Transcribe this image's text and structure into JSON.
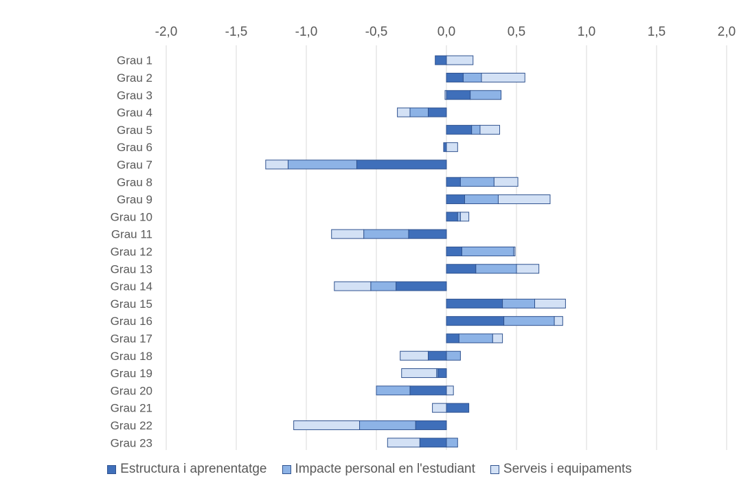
{
  "chart_data": {
    "type": "bar",
    "orientation": "horizontal",
    "stacked": true,
    "categories": [
      "Grau 1",
      "Grau 2",
      "Grau 3",
      "Grau 4",
      "Grau 5",
      "Grau 6",
      "Grau 7",
      "Grau 8",
      "Grau 9",
      "Grau 10",
      "Grau 11",
      "Grau 12",
      "Grau 13",
      "Grau 14",
      "Grau 15",
      "Grau 16",
      "Grau 17",
      "Grau 18",
      "Grau 19",
      "Grau 20",
      "Grau 21",
      "Grau 22",
      "Grau 23"
    ],
    "series": [
      {
        "name": "Estructura i aprenentatge",
        "color": "#3f6fba",
        "values": [
          -0.08,
          0.12,
          0.17,
          -0.13,
          0.18,
          -0.02,
          -0.64,
          0.1,
          0.13,
          0.08,
          -0.27,
          0.11,
          0.21,
          -0.36,
          0.4,
          0.41,
          0.09,
          -0.13,
          -0.06,
          -0.26,
          0.16,
          -0.22,
          -0.19
        ]
      },
      {
        "name": "Impacte personal en l'estudiant",
        "color": "#8db3e6",
        "values": [
          0.0,
          0.13,
          0.22,
          -0.13,
          0.06,
          0.0,
          -0.49,
          0.24,
          0.24,
          0.02,
          -0.32,
          0.37,
          0.29,
          -0.18,
          0.23,
          0.36,
          0.24,
          0.1,
          -0.01,
          -0.24,
          0.0,
          -0.4,
          0.08
        ]
      },
      {
        "name": "Serveis i equipaments",
        "color": "#d3e1f5",
        "values": [
          0.19,
          0.31,
          -0.01,
          -0.09,
          0.14,
          0.08,
          -0.16,
          0.17,
          0.37,
          0.06,
          -0.23,
          0.01,
          0.16,
          -0.26,
          0.22,
          0.06,
          0.07,
          -0.2,
          -0.25,
          0.05,
          -0.1,
          -0.47,
          -0.23
        ]
      }
    ],
    "x_ticks": [
      "-2,0",
      "-1,5",
      "-1,0",
      "-0,5",
      "0,0",
      "0,5",
      "1,0",
      "1,5",
      "2,0"
    ],
    "xlim": [
      -2.0,
      2.0
    ],
    "grid": true,
    "legend_position": "bottom"
  }
}
